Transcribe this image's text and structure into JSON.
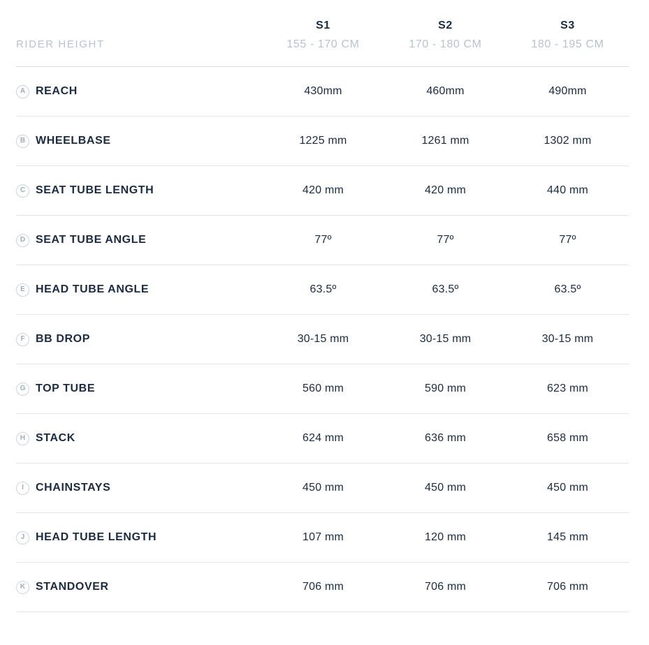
{
  "table": {
    "header": {
      "row_label": "RIDER HEIGHT",
      "columns": [
        {
          "name": "S1",
          "range": "155 - 170 CM"
        },
        {
          "name": "S2",
          "range": "170 - 180 CM"
        },
        {
          "name": "S3",
          "range": "180 - 195 CM"
        }
      ]
    },
    "rows": [
      {
        "letter": "A",
        "label": "REACH",
        "values": [
          "430mm",
          "460mm",
          "490mm"
        ]
      },
      {
        "letter": "B",
        "label": "WHEELBASE",
        "values": [
          "1225 mm",
          "1261 mm",
          "1302 mm"
        ]
      },
      {
        "letter": "C",
        "label": "SEAT TUBE LENGTH",
        "values": [
          "420 mm",
          "420 mm",
          "440 mm"
        ]
      },
      {
        "letter": "D",
        "label": "SEAT TUBE ANGLE",
        "values": [
          "77º",
          "77º",
          "77º"
        ]
      },
      {
        "letter": "E",
        "label": "HEAD TUBE ANGLE",
        "values": [
          "63.5º",
          "63.5º",
          "63.5º"
        ]
      },
      {
        "letter": "F",
        "label": "BB DROP",
        "values": [
          "30-15 mm",
          "30-15 mm",
          "30-15 mm"
        ]
      },
      {
        "letter": "G",
        "label": "TOP TUBE",
        "values": [
          "560 mm",
          "590 mm",
          "623 mm"
        ]
      },
      {
        "letter": "H",
        "label": "STACK",
        "values": [
          "624 mm",
          "636 mm",
          "658 mm"
        ]
      },
      {
        "letter": "I",
        "label": "CHAINSTAYS",
        "values": [
          "450 mm",
          "450 mm",
          "450 mm"
        ]
      },
      {
        "letter": "J",
        "label": "HEAD TUBE LENGTH",
        "values": [
          "107 mm",
          "120 mm",
          "145 mm"
        ]
      },
      {
        "letter": "K",
        "label": "STANDOVER",
        "values": [
          "706 mm",
          "706 mm",
          "706 mm"
        ]
      }
    ]
  },
  "colors": {
    "text_primary": "#1b2b41",
    "text_secondary": "#b9c3ce",
    "badge_border": "#ccd5dd",
    "badge_letter": "#9fabb8",
    "divider_header": "#d6dee4",
    "divider_row": "#e2e6e9",
    "background": "#ffffff"
  }
}
